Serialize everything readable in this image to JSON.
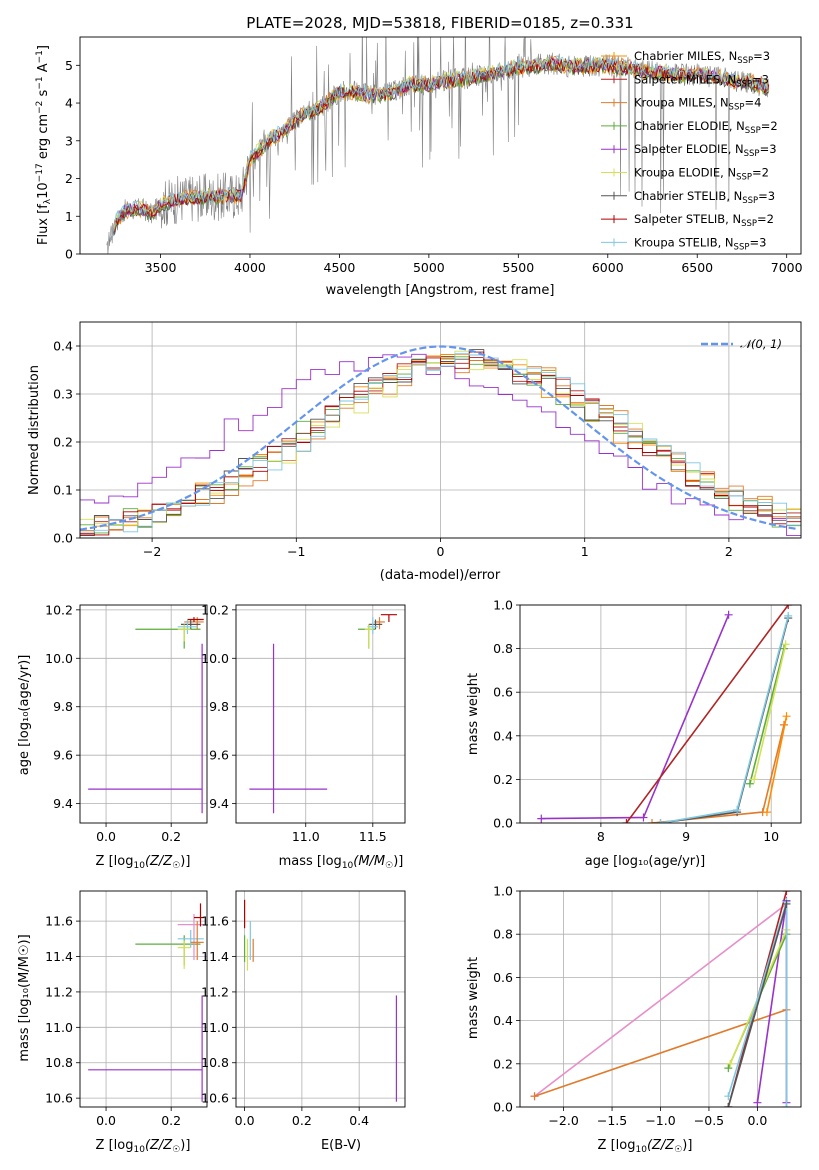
{
  "chart_data": [
    {
      "type": "line",
      "title": "PLATE=2028, MJD=53818, FIBERID=0185, z=0.331",
      "xlabel": "wavelength [Angstrom, rest frame]",
      "ylabel_parts": [
        "Flux [f",
        "λ",
        "10",
        "−17",
        " erg cm",
        "−2",
        " s",
        "−1",
        " A",
        "−1",
        "]"
      ],
      "xlim": [
        3050,
        7080
      ],
      "ylim": [
        0,
        5.75
      ],
      "xticks": [
        "3500",
        "4000",
        "4500",
        "5000",
        "5500",
        "6000",
        "6500",
        "7000"
      ],
      "xtick_values": [
        3500,
        4000,
        4500,
        5000,
        5500,
        6000,
        6500,
        7000
      ],
      "yticks": [
        "0",
        "1",
        "2",
        "3",
        "4",
        "5"
      ],
      "ytick_values": [
        0,
        1,
        2,
        3,
        4,
        5
      ],
      "observed_spectrum": {
        "range": [
          3200,
          6900
        ],
        "anchor_x": [
          3200,
          3250,
          3300,
          3400,
          3450,
          3500,
          3600,
          3700,
          3800,
          3900,
          3950,
          4000,
          4100,
          4200,
          4300,
          4400,
          4500,
          4600,
          4700,
          4800,
          4900,
          5000,
          5100,
          5200,
          5300,
          5400,
          5500,
          5600,
          5700,
          5800,
          5900,
          6000,
          6100,
          6200,
          6300,
          6400,
          6500,
          6600,
          6700,
          6800,
          6900
        ],
        "anchor_y": [
          0.0,
          0.85,
          1.15,
          1.2,
          1.05,
          1.3,
          1.45,
          1.5,
          1.5,
          1.55,
          1.55,
          2.5,
          3.0,
          3.3,
          3.7,
          3.9,
          4.3,
          4.3,
          4.2,
          4.3,
          4.5,
          4.5,
          4.6,
          4.65,
          4.75,
          4.85,
          4.95,
          5.0,
          5.05,
          4.95,
          5.0,
          5.0,
          4.95,
          4.85,
          4.8,
          4.75,
          4.75,
          4.7,
          4.6,
          4.55,
          4.4
        ]
      },
      "legend_position": "top-right",
      "legend": [
        {
          "name_main": "Chabrier MILES, N",
          "name_sub": "SSP",
          "name_tail": "=3",
          "color": "#ff8c00"
        },
        {
          "name_main": "Salpeter MILES, N",
          "name_sub": "SSP",
          "name_tail": "=3",
          "color": "#b22222"
        },
        {
          "name_main": "Kroupa MILES, N",
          "name_sub": "SSP",
          "name_tail": "=4",
          "color": "#e07b2c"
        },
        {
          "name_main": "Chabrier ELODIE, N",
          "name_sub": "SSP",
          "name_tail": "=2",
          "color": "#5cad3c"
        },
        {
          "name_main": "Salpeter ELODIE, N",
          "name_sub": "SSP",
          "name_tail": "=3",
          "color": "#9932cc"
        },
        {
          "name_main": "Kroupa ELODIE, N",
          "name_sub": "SSP",
          "name_tail": "=2",
          "color": "#d4e157"
        },
        {
          "name_main": "Chabrier STELIB, N",
          "name_sub": "SSP",
          "name_tail": "=3",
          "color": "#555555"
        },
        {
          "name_main": "Salpeter STELIB, N",
          "name_sub": "SSP",
          "name_tail": "=2",
          "color": "#b00000"
        },
        {
          "name_main": "Kroupa STELIB, N",
          "name_sub": "SSP",
          "name_tail": "=3",
          "color": "#7ec8e3"
        }
      ]
    },
    {
      "type": "line",
      "xlabel": "(data-model)/error",
      "ylabel": "Normed distribution",
      "xlim": [
        -2.5,
        2.5
      ],
      "ylim": [
        0,
        0.45
      ],
      "xticks": [
        "−2",
        "−1",
        "0",
        "1",
        "2"
      ],
      "xtick_values": [
        -2,
        -1,
        0,
        1,
        2
      ],
      "yticks": [
        "0.0",
        "0.1",
        "0.2",
        "0.3",
        "0.4"
      ],
      "ytick_values": [
        0,
        0.1,
        0.2,
        0.3,
        0.4
      ],
      "gaussian": {
        "name": "𝒩(0, 1)",
        "mean": 0,
        "sigma": 1,
        "color": "#6495ed"
      },
      "histogram_colors": [
        "#ff8c00",
        "#b22222",
        "#e07b2c",
        "#5cad3c",
        "#9932cc",
        "#d4e157",
        "#555555",
        "#b00000",
        "#7ec8e3"
      ],
      "legend_position": "top-right"
    },
    {
      "type": "scatter",
      "xlabel_main": "Z [log",
      "xlabel_sub": "10",
      "xlabel_tail": "(Z/Z",
      "ylabel": "age  [log₁₀(age/yr)]",
      "xlim": [
        -0.08,
        0.31
      ],
      "ylim": [
        9.32,
        10.22
      ],
      "xticks": [
        "0.0",
        "0.2"
      ],
      "xtick_values": [
        0.0,
        0.2
      ],
      "yticks": [
        "9.4",
        "9.6",
        "9.8",
        "10.0",
        "10.2"
      ],
      "ytick_values": [
        9.4,
        9.6,
        9.8,
        10.0,
        10.2
      ],
      "points": [
        {
          "x": 0.295,
          "y": 9.46,
          "xerr": [
            0.35,
            0.0
          ],
          "yerr": [
            0.1,
            0.6
          ],
          "color": "#9932cc"
        },
        {
          "x": 0.24,
          "y": 10.12,
          "xerr": [
            0.15,
            0.05
          ],
          "yerr": [
            0.08,
            0.02
          ],
          "color": "#5cad3c"
        },
        {
          "x": 0.28,
          "y": 10.15,
          "xerr": [
            0.04,
            0.02
          ],
          "yerr": [
            0.03,
            0.02
          ],
          "color": "#e07b2c"
        },
        {
          "x": 0.26,
          "y": 10.14,
          "xerr": [
            0.03,
            0.03
          ],
          "yerr": [
            0.02,
            0.02
          ],
          "color": "#555555"
        },
        {
          "x": 0.27,
          "y": 10.16,
          "xerr": [
            0.02,
            0.03
          ],
          "yerr": [
            0.01,
            0.01
          ],
          "color": "#b00000"
        },
        {
          "x": 0.25,
          "y": 10.13,
          "xerr": [
            0.03,
            0.03
          ],
          "yerr": [
            0.03,
            0.03
          ],
          "color": "#7ec8e3"
        },
        {
          "x": 0.24,
          "y": 10.12,
          "xerr": [
            0.02,
            0.02
          ],
          "yerr": [
            0.05,
            0.02
          ],
          "color": "#d4e157"
        }
      ]
    },
    {
      "type": "scatter",
      "xlabel_main": "mass [log",
      "xlabel_sub": "10",
      "xlabel_tail": "(M/M",
      "xlim": [
        10.48,
        11.74
      ],
      "ylim": [
        9.32,
        10.22
      ],
      "xticks": [
        "11.0",
        "11.5"
      ],
      "xtick_values": [
        11.0,
        11.5
      ],
      "yticks": [
        "9.4",
        "9.6",
        "9.8",
        "10.0",
        "10.2"
      ],
      "ytick_values": [
        9.4,
        9.6,
        9.8,
        10.0,
        10.2
      ],
      "points": [
        {
          "x": 10.76,
          "y": 9.46,
          "xerr": [
            0.18,
            0.4
          ],
          "yerr": [
            0.1,
            0.6
          ],
          "color": "#9932cc"
        },
        {
          "x": 11.47,
          "y": 10.12,
          "xerr": [
            0.08,
            0.05
          ],
          "yerr": [
            0.08,
            0.02
          ],
          "color": "#5cad3c"
        },
        {
          "x": 11.55,
          "y": 10.15,
          "xerr": [
            0.04,
            0.04
          ],
          "yerr": [
            0.03,
            0.02
          ],
          "color": "#e07b2c"
        },
        {
          "x": 11.52,
          "y": 10.14,
          "xerr": [
            0.05,
            0.05
          ],
          "yerr": [
            0.02,
            0.02
          ],
          "color": "#555555"
        },
        {
          "x": 11.62,
          "y": 10.18,
          "xerr": [
            0.06,
            0.06
          ],
          "yerr": [
            0.03,
            0.0
          ],
          "color": "#b00000"
        },
        {
          "x": 11.5,
          "y": 10.13,
          "xerr": [
            0.04,
            0.04
          ],
          "yerr": [
            0.03,
            0.04
          ],
          "color": "#7ec8e3"
        },
        {
          "x": 11.47,
          "y": 10.12,
          "xerr": [
            0.03,
            0.03
          ],
          "yerr": [
            0.08,
            0.02
          ],
          "color": "#d4e157"
        }
      ]
    },
    {
      "type": "line",
      "xlabel": "age  [log₁₀(age/yr)]",
      "ylabel": "mass weight",
      "xlim": [
        7.05,
        10.35
      ],
      "ylim": [
        0,
        1.0
      ],
      "xticks": [
        "8",
        "9",
        "10"
      ],
      "xtick_values": [
        8,
        9,
        10
      ],
      "yticks": [
        "0.0",
        "0.2",
        "0.4",
        "0.6",
        "0.8",
        "1.0"
      ],
      "ytick_values": [
        0,
        0.2,
        0.4,
        0.6,
        0.8,
        1.0
      ],
      "series": [
        {
          "color": "#9932cc",
          "x": [
            7.3,
            8.5,
            9.5
          ],
          "y": [
            0.02,
            0.025,
            0.955
          ]
        },
        {
          "color": "#b22222",
          "x": [
            8.3,
            10.2
          ],
          "y": [
            0.0,
            1.0
          ]
        },
        {
          "color": "#e07b2c",
          "x": [
            8.6,
            9.9,
            10.15
          ],
          "y": [
            0.0,
            0.05,
            0.45
          ]
        },
        {
          "color": "#ff8c00",
          "x": [
            9.95,
            10.18
          ],
          "y": [
            0.05,
            0.49
          ]
        },
        {
          "color": "#5cad3c",
          "x": [
            9.75,
            10.15
          ],
          "y": [
            0.18,
            0.8
          ]
        },
        {
          "color": "#d4e157",
          "x": [
            9.8,
            10.17
          ],
          "y": [
            0.2,
            0.82
          ]
        },
        {
          "color": "#555555",
          "x": [
            8.7,
            9.6,
            10.2
          ],
          "y": [
            0.0,
            0.05,
            0.94
          ]
        },
        {
          "color": "#7ec8e3",
          "x": [
            8.7,
            9.6,
            10.2
          ],
          "y": [
            0.0,
            0.06,
            0.95
          ]
        }
      ]
    },
    {
      "type": "scatter",
      "xlabel_main": "Z [log",
      "xlabel_sub": "10",
      "xlabel_tail": "(Z/Z",
      "ylabel": "mass [log₁₀(M/M☉)]",
      "xlim": [
        -0.08,
        0.31
      ],
      "ylim": [
        10.55,
        11.77
      ],
      "xticks": [
        "0.0",
        "0.2"
      ],
      "xtick_values": [
        0.0,
        0.2
      ],
      "yticks": [
        "10.6",
        "10.8",
        "11.0",
        "11.2",
        "11.4",
        "11.6"
      ],
      "ytick_values": [
        10.6,
        10.8,
        11.0,
        11.2,
        11.4,
        11.6
      ],
      "points": [
        {
          "x": 0.295,
          "y": 10.76,
          "xerr": [
            0.35,
            0.0
          ],
          "yerr": [
            0.18,
            0.42
          ],
          "color": "#9932cc"
        },
        {
          "x": 0.24,
          "y": 11.47,
          "xerr": [
            0.15,
            0.05
          ],
          "yerr": [
            0.12,
            0.05
          ],
          "color": "#5cad3c"
        },
        {
          "x": 0.27,
          "y": 11.58,
          "xerr": [
            0.05,
            0.03
          ],
          "yerr": [
            0.2,
            0.06
          ],
          "color": "#e88ec8"
        },
        {
          "x": 0.29,
          "y": 11.62,
          "xerr": [
            0.02,
            0.01
          ],
          "yerr": [
            0.05,
            0.08
          ],
          "color": "#b00000"
        },
        {
          "x": 0.26,
          "y": 11.5,
          "xerr": [
            0.04,
            0.04
          ],
          "yerr": [
            0.05,
            0.05
          ],
          "color": "#7ec8e3"
        },
        {
          "x": 0.28,
          "y": 11.48,
          "xerr": [
            0.02,
            0.02
          ],
          "yerr": [
            0.1,
            0.12
          ],
          "color": "#e07b2c"
        },
        {
          "x": 0.24,
          "y": 11.45,
          "xerr": [
            0.02,
            0.02
          ],
          "yerr": [
            0.12,
            0.04
          ],
          "color": "#d4e157"
        }
      ]
    },
    {
      "type": "scatter",
      "xlabel": "E(B-V)",
      "xlim": [
        -0.03,
        0.56
      ],
      "ylim": [
        10.55,
        11.77
      ],
      "xticks": [
        "0.0",
        "0.2",
        "0.4"
      ],
      "xtick_values": [
        0.0,
        0.2,
        0.4
      ],
      "yticks": [
        "10.6",
        "10.8",
        "11.0",
        "11.2",
        "11.4",
        "11.6"
      ],
      "ytick_values": [
        10.6,
        10.8,
        11.0,
        11.2,
        11.4,
        11.6
      ],
      "points": [
        {
          "x": 0.53,
          "y": 10.76,
          "xerr": [
            0,
            0
          ],
          "yerr": [
            0.18,
            0.42
          ],
          "color": "#9932cc"
        },
        {
          "x": 0.0,
          "y": 11.47,
          "xerr": [
            0,
            0
          ],
          "yerr": [
            0.1,
            0.05
          ],
          "color": "#5cad3c"
        },
        {
          "x": 0.0,
          "y": 11.62,
          "xerr": [
            0,
            0
          ],
          "yerr": [
            0.06,
            0.1
          ],
          "color": "#b00000"
        },
        {
          "x": 0.02,
          "y": 11.5,
          "xerr": [
            0,
            0
          ],
          "yerr": [
            0.12,
            0.1
          ],
          "color": "#7ec8e3"
        },
        {
          "x": 0.03,
          "y": 11.45,
          "xerr": [
            0,
            0
          ],
          "yerr": [
            0.08,
            0.05
          ],
          "color": "#e07b2c"
        },
        {
          "x": 0.01,
          "y": 11.42,
          "xerr": [
            0,
            0
          ],
          "yerr": [
            0.1,
            0.08
          ],
          "color": "#d4e157"
        }
      ]
    },
    {
      "type": "line",
      "xlabel_main": "Z [log",
      "xlabel_sub": "10",
      "xlabel_tail": "(Z/Z",
      "ylabel": "mass weight",
      "xlim": [
        -2.45,
        0.45
      ],
      "ylim": [
        0,
        1.0
      ],
      "xticks": [
        "−2.0",
        "−1.5",
        "−1.0",
        "−0.5",
        "0.0"
      ],
      "xtick_values": [
        -2.0,
        -1.5,
        -1.0,
        -0.5,
        0.0
      ],
      "yticks": [
        "0.0",
        "0.2",
        "0.4",
        "0.6",
        "0.8",
        "1.0"
      ],
      "ytick_values": [
        0,
        0.2,
        0.4,
        0.6,
        0.8,
        1.0
      ],
      "series": [
        {
          "color": "#e88ec8",
          "x": [
            -2.3,
            0.3
          ],
          "y": [
            0.05,
            0.94
          ]
        },
        {
          "color": "#e07b2c",
          "x": [
            -2.3,
            0.3
          ],
          "y": [
            0.05,
            0.45
          ]
        },
        {
          "color": "#b22222",
          "x": [
            -0.3,
            0.3
          ],
          "y": [
            0.0,
            1.0
          ]
        },
        {
          "color": "#9932cc",
          "x": [
            0.0,
            0.3,
            0.3
          ],
          "y": [
            0.02,
            0.955,
            0.02
          ]
        },
        {
          "color": "#5cad3c",
          "x": [
            -0.3,
            0.3
          ],
          "y": [
            0.18,
            0.8
          ]
        },
        {
          "color": "#d4e157",
          "x": [
            -0.28,
            0.3
          ],
          "y": [
            0.2,
            0.82
          ]
        },
        {
          "color": "#7ec8e3",
          "x": [
            -0.3,
            0.3,
            0.3
          ],
          "y": [
            0.05,
            0.95,
            0.0
          ]
        },
        {
          "color": "#555555",
          "x": [
            -0.3,
            0.3
          ],
          "y": [
            0.0,
            0.94
          ]
        }
      ]
    }
  ],
  "sun_symbol": "☉",
  "close_paren": ")]"
}
